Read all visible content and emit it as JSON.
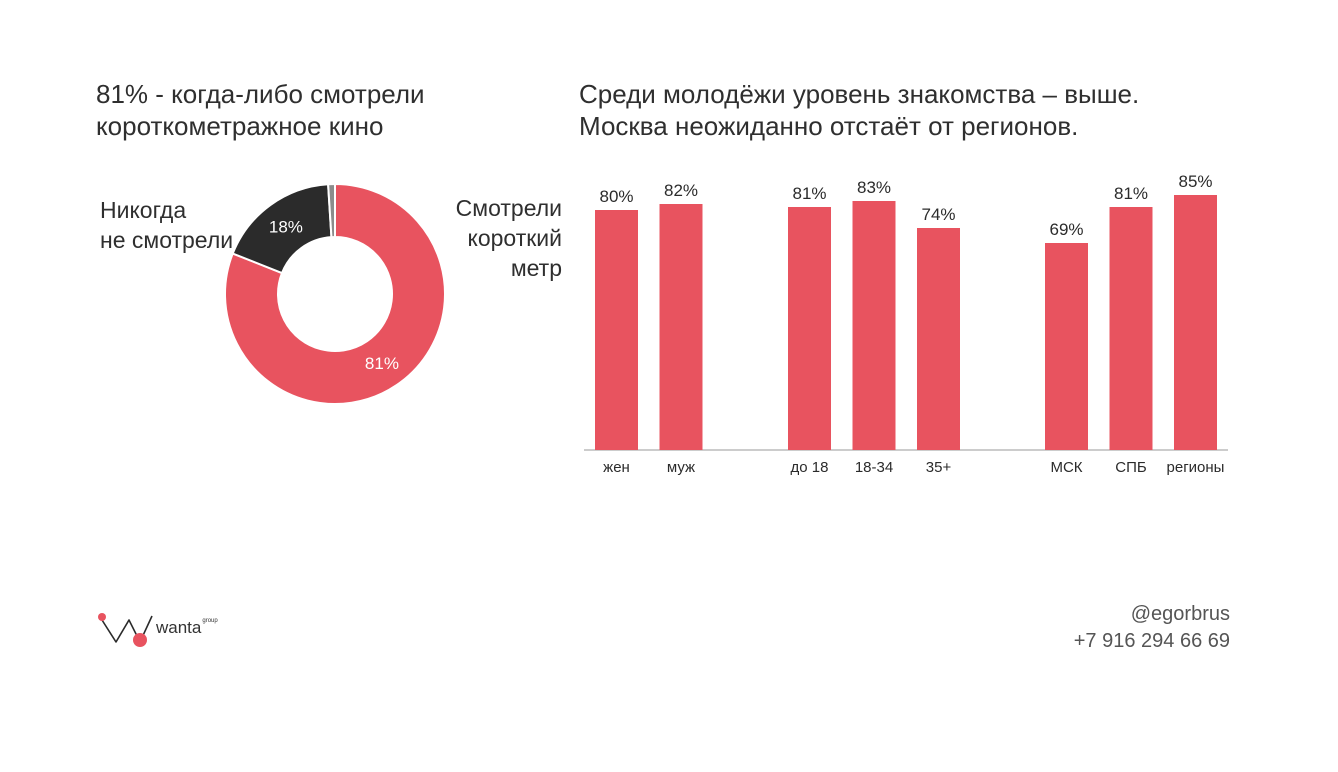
{
  "donut": {
    "title": "81% - когда-либо смотрели короткометражное кино",
    "never_label_lines": [
      "Никогда",
      "не смотрели"
    ],
    "watched_label_lines": [
      "Смотрели",
      "короткий",
      "метр"
    ]
  },
  "bars": {
    "title_lines": [
      "Среди молодёжи уровень знакомства – выше.",
      "Москва неожиданно отстаёт от регионов."
    ]
  },
  "footer": {
    "handle": "@egorbrus",
    "phone": "+7 916 294 66 69",
    "logo_text": "wanta",
    "logo_sup": "group"
  },
  "colors": {
    "accent": "#e8535f",
    "dark": "#2b2b2b",
    "gray": "#8c8c8c"
  },
  "chart_data": [
    {
      "type": "pie",
      "title": "81% - когда-либо смотрели короткометражное кино",
      "donut": true,
      "slices": [
        {
          "name": "Смотрели короткий метр",
          "value": 81,
          "label": "81%",
          "color": "#e8535f"
        },
        {
          "name": "Никогда не смотрели",
          "value": 18,
          "label": "18%",
          "color": "#2b2b2b"
        },
        {
          "name": "",
          "value": 1,
          "label": "",
          "color": "#8c8c8c"
        }
      ]
    },
    {
      "type": "bar",
      "title": "Среди молодёжи уровень знакомства – выше. Москва неожиданно отстаёт от регионов.",
      "groups": [
        {
          "categories": [
            "жен",
            "муж"
          ],
          "values": [
            80,
            82
          ]
        },
        {
          "categories": [
            "до 18",
            "18-34",
            "35+"
          ],
          "values": [
            81,
            83,
            74
          ]
        },
        {
          "categories": [
            "МСК",
            "СПБ",
            "регионы"
          ],
          "values": [
            69,
            81,
            85
          ]
        }
      ],
      "labels": [
        [
          "80%",
          "82%"
        ],
        [
          "81%",
          "83%",
          "74%"
        ],
        [
          "69%",
          "81%",
          "85%"
        ]
      ],
      "ylim": [
        0,
        100
      ],
      "grid": false,
      "color": "#e8535f"
    }
  ]
}
